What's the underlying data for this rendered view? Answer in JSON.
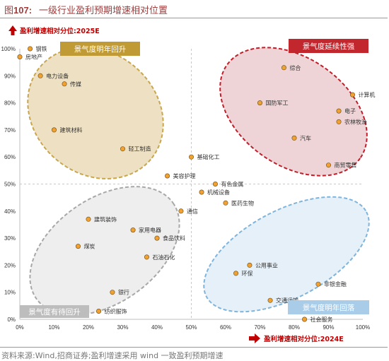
{
  "figure": {
    "title_prefix": "图",
    "title_number": "107:",
    "title_text": "一级行业盈利预期增速相对位置",
    "source_note": "资料来源:Wind,招商证券;盈利增速采用 wind 一致盈利预期增速"
  },
  "chart_data": {
    "type": "scatter",
    "ylabel": "盈利增速相对分位:2025E",
    "xlabel": "盈利增速相对分位:2024E",
    "xlim": [
      0,
      100
    ],
    "ylim": [
      0,
      100
    ],
    "x_ticks": [
      "0%",
      "10%",
      "20%",
      "30%",
      "40%",
      "50%",
      "60%",
      "70%",
      "80%",
      "90%",
      "100%"
    ],
    "y_ticks": [
      "0%",
      "10%",
      "20%",
      "30%",
      "40%",
      "50%",
      "60%",
      "70%",
      "80%",
      "90%",
      "100%"
    ],
    "divider_x": 50,
    "divider_y": 50,
    "grid": false,
    "marker_color": "#f0a132",
    "points": [
      {
        "label": "钢铁",
        "x": 3,
        "y": 100
      },
      {
        "label": "房地产",
        "x": 0,
        "y": 97
      },
      {
        "label": "电力设备",
        "x": 6,
        "y": 90
      },
      {
        "label": "传媒",
        "x": 13,
        "y": 87
      },
      {
        "label": "建筑材料",
        "x": 10,
        "y": 70
      },
      {
        "label": "轻工制造",
        "x": 30,
        "y": 63
      },
      {
        "label": "基础化工",
        "x": 50,
        "y": 60
      },
      {
        "label": "美容护理",
        "x": 43,
        "y": 53
      },
      {
        "label": "有色金属",
        "x": 57,
        "y": 50
      },
      {
        "label": "机械设备",
        "x": 53,
        "y": 47
      },
      {
        "label": "医药生物",
        "x": 60,
        "y": 43
      },
      {
        "label": "通信",
        "x": 47,
        "y": 40
      },
      {
        "label": "建筑装饰",
        "x": 20,
        "y": 37
      },
      {
        "label": "家用电器",
        "x": 33,
        "y": 33
      },
      {
        "label": "食品饮料",
        "x": 40,
        "y": 30
      },
      {
        "label": "煤炭",
        "x": 17,
        "y": 27
      },
      {
        "label": "石油石化",
        "x": 37,
        "y": 23
      },
      {
        "label": "银行",
        "x": 27,
        "y": 10
      },
      {
        "label": "纺织服饰",
        "x": 23,
        "y": 3
      },
      {
        "label": "综合",
        "x": 77,
        "y": 93
      },
      {
        "label": "国防军工",
        "x": 70,
        "y": 80
      },
      {
        "label": "计算机",
        "x": 97,
        "y": 83
      },
      {
        "label": "电子",
        "x": 93,
        "y": 77
      },
      {
        "label": "农林牧渔",
        "x": 93,
        "y": 73
      },
      {
        "label": "汽车",
        "x": 80,
        "y": 67
      },
      {
        "label": "商贸零售",
        "x": 90,
        "y": 57
      },
      {
        "label": "公用事业",
        "x": 67,
        "y": 20
      },
      {
        "label": "环保",
        "x": 63,
        "y": 17
      },
      {
        "label": "非银金融",
        "x": 87,
        "y": 13
      },
      {
        "label": "交通运输",
        "x": 73,
        "y": 7
      },
      {
        "label": "社会服务",
        "x": 83,
        "y": 0
      }
    ],
    "quadrants": [
      {
        "label": "景气度明年回升",
        "fill": "#e8d6ad",
        "stroke": "#c8a64c",
        "label_bg": "#c09a35",
        "label_color": "#ffffff"
      },
      {
        "label": "景气度延续性强",
        "fill": "#e8c6c8",
        "stroke": "#c01e2a",
        "label_bg": "#c1272d",
        "label_color": "#ffffff"
      },
      {
        "label": "景气度有待回升",
        "fill": "#e8e8e8",
        "stroke": "#a8a8a8",
        "label_bg": "#bdbdbd",
        "label_color": "#ffffff"
      },
      {
        "label": "景气度明年回落",
        "fill": "#dcebf5",
        "stroke": "#7fb4dc",
        "label_bg": "#a9cde9",
        "label_color": "#ffffff"
      }
    ]
  }
}
